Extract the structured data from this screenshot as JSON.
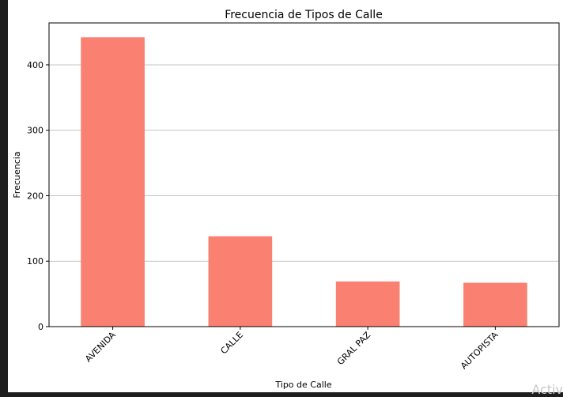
{
  "watermark": "Activ",
  "chart_data": {
    "type": "bar",
    "title": "Frecuencia de Tipos de Calle",
    "xlabel": "Tipo de Calle",
    "ylabel": "Frecuencia",
    "categories": [
      "AVENIDA",
      "CALLE",
      "GRAL PAZ",
      "AUTOPISTA"
    ],
    "values": [
      442,
      138,
      69,
      67
    ],
    "ylim": [
      0,
      464
    ],
    "yticks": [
      0,
      100,
      200,
      300,
      400
    ],
    "grid": "y",
    "bar_color": "#fa8072",
    "grid_color": "#b0b0b0"
  }
}
